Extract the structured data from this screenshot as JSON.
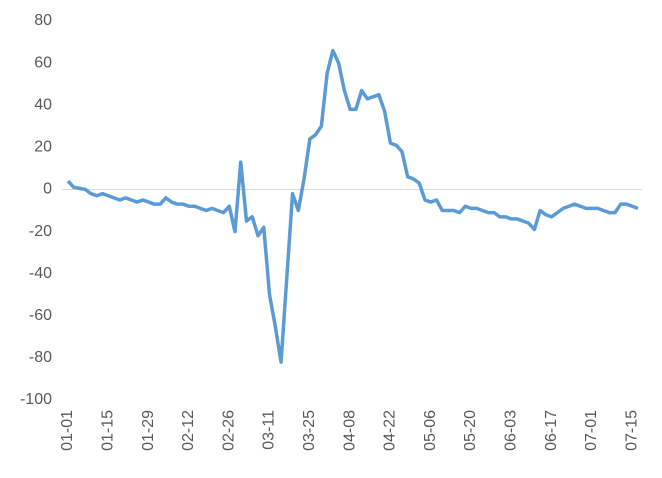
{
  "chart_data": {
    "type": "line",
    "categories": [
      "01-01",
      null,
      null,
      null,
      null,
      null,
      null,
      "01-15",
      null,
      null,
      null,
      null,
      null,
      null,
      "01-29",
      null,
      null,
      null,
      null,
      null,
      null,
      "02-12",
      null,
      null,
      null,
      null,
      null,
      null,
      "02-26",
      null,
      null,
      null,
      null,
      null,
      null,
      "03-11",
      null,
      null,
      null,
      null,
      null,
      null,
      "03-25",
      null,
      null,
      null,
      null,
      null,
      null,
      "04-08",
      null,
      null,
      null,
      null,
      null,
      null,
      "04-22",
      null,
      null,
      null,
      null,
      null,
      null,
      "05-06",
      null,
      null,
      null,
      null,
      null,
      null,
      "05-20",
      null,
      null,
      null,
      null,
      null,
      null,
      "06-03",
      null,
      null,
      null,
      null,
      null,
      null,
      "06-17",
      null,
      null,
      null,
      null,
      null,
      null,
      "07-01",
      null,
      null,
      null,
      null,
      null,
      null,
      "07-15",
      null
    ],
    "series": [
      {
        "color": "#5b9bd5",
        "values": [
          4,
          1,
          0.5,
          0,
          -2,
          -3,
          -2,
          -3,
          -4,
          -5,
          -4,
          -5,
          -6,
          -5,
          -6,
          -7,
          -7,
          -4,
          -6,
          -7,
          -7,
          -8,
          -8,
          -9,
          -10,
          -9,
          -10,
          -11,
          -8,
          -20,
          13,
          -15,
          -13,
          -22,
          -18,
          -50,
          -65,
          -82,
          -42,
          -2,
          -10,
          5,
          24,
          26,
          30,
          55,
          66,
          60,
          47,
          38,
          38,
          47,
          43,
          44,
          45,
          37,
          22,
          21,
          18,
          6,
          5,
          3,
          -5,
          -6,
          -5,
          -10,
          -10,
          -10,
          -11,
          -8,
          -9,
          -9,
          -10,
          -11,
          -11,
          -13,
          -13,
          -14,
          -14,
          -15,
          -16,
          -19,
          -10,
          -12,
          -13,
          -11,
          -9,
          -8,
          -7,
          -8,
          -9,
          -9,
          -9,
          -10,
          -11,
          -11,
          -7,
          -7,
          -8,
          -9
        ]
      }
    ],
    "ylim": [
      -100,
      80
    ],
    "yticks": [
      -100,
      -80,
      -60,
      -40,
      -20,
      0,
      20,
      40,
      60,
      80
    ]
  }
}
